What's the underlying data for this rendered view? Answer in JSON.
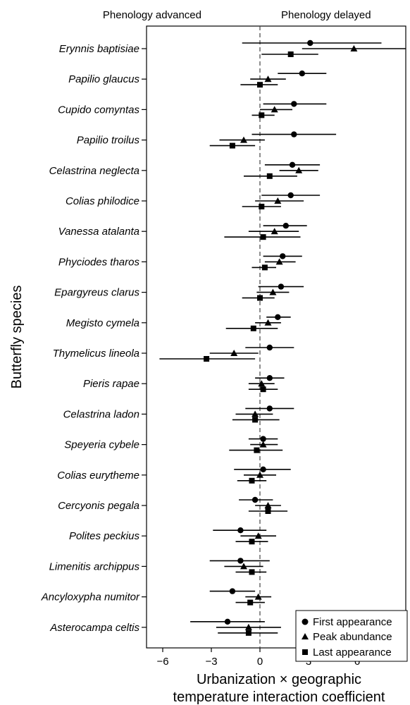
{
  "chart_data": {
    "type": "scatter",
    "subtype": "forest-plot",
    "title": "",
    "top_labels": {
      "left": "Phenology advanced",
      "right": "Phenology delayed"
    },
    "xlabel_lines": [
      "Urbanization × geographic",
      "temperature interaction coefficient"
    ],
    "ylabel": "Butterfly species",
    "xlim": [
      -7,
      9
    ],
    "xticks": [
      -6,
      -3,
      0,
      3,
      6
    ],
    "reference_line_x": 0,
    "legend_position": "bottom-right",
    "legend": [
      {
        "name": "First appearance",
        "marker": "circle"
      },
      {
        "name": "Peak abundance",
        "marker": "triangle"
      },
      {
        "name": "Last appearance",
        "marker": "square"
      }
    ],
    "species": [
      {
        "name": "Erynnis baptisiae",
        "first": [
          3.1,
          -1.1,
          7.5
        ],
        "peak": [
          5.8,
          2.6,
          9.0
        ],
        "last": [
          1.9,
          0.1,
          3.6
        ]
      },
      {
        "name": "Papilio glaucus",
        "first": [
          2.6,
          1.1,
          4.1
        ],
        "peak": [
          0.5,
          -0.6,
          1.6
        ],
        "last": [
          0.0,
          -1.2,
          1.1
        ]
      },
      {
        "name": "Cupido comyntas",
        "first": [
          2.1,
          0.2,
          4.1
        ],
        "peak": [
          0.9,
          0.0,
          2.0
        ],
        "last": [
          0.1,
          -0.5,
          0.9
        ]
      },
      {
        "name": "Papilio troilus",
        "first": [
          2.1,
          -0.5,
          4.7
        ],
        "peak": [
          -1.0,
          -2.5,
          0.3
        ],
        "last": [
          -1.7,
          -3.1,
          -0.3
        ]
      },
      {
        "name": "Celastrina neglecta",
        "first": [
          2.0,
          0.3,
          3.7
        ],
        "peak": [
          2.4,
          1.2,
          3.6
        ],
        "last": [
          0.6,
          -1.0,
          2.3
        ]
      },
      {
        "name": "Colias philodice",
        "first": [
          1.9,
          0.1,
          3.7
        ],
        "peak": [
          1.1,
          -0.3,
          2.7
        ],
        "last": [
          0.1,
          -1.1,
          1.3
        ]
      },
      {
        "name": "Vanessa atalanta",
        "first": [
          1.6,
          0.2,
          2.9
        ],
        "peak": [
          0.9,
          -0.7,
          2.4
        ],
        "last": [
          0.2,
          -2.2,
          2.5
        ]
      },
      {
        "name": "Phyciodes tharos",
        "first": [
          1.4,
          0.2,
          2.6
        ],
        "peak": [
          1.2,
          0.3,
          2.2
        ],
        "last": [
          0.3,
          -0.5,
          1.0
        ]
      },
      {
        "name": "Epargyreus clarus",
        "first": [
          1.3,
          -0.1,
          2.7
        ],
        "peak": [
          0.8,
          -0.2,
          1.8
        ],
        "last": [
          0.0,
          -1.1,
          0.9
        ]
      },
      {
        "name": "Megisto cymela",
        "first": [
          1.1,
          0.4,
          1.9
        ],
        "peak": [
          0.5,
          -0.3,
          1.3
        ],
        "last": [
          -0.4,
          -2.1,
          1.1
        ]
      },
      {
        "name": "Thymelicus lineola",
        "first": [
          0.6,
          -0.9,
          2.1
        ],
        "peak": [
          -1.6,
          -3.1,
          -0.1
        ],
        "last": [
          -3.3,
          -6.2,
          -0.3
        ]
      },
      {
        "name": "Pieris rapae",
        "first": [
          0.6,
          -0.3,
          1.5
        ],
        "peak": [
          0.1,
          -0.7,
          0.9
        ],
        "last": [
          0.2,
          -0.7,
          1.1
        ]
      },
      {
        "name": "Celastrina ladon",
        "first": [
          0.6,
          -0.9,
          2.1
        ],
        "peak": [
          -0.3,
          -1.5,
          0.8
        ],
        "last": [
          -0.3,
          -1.7,
          1.2
        ]
      },
      {
        "name": "Speyeria cybele",
        "first": [
          0.2,
          -0.7,
          1.1
        ],
        "peak": [
          0.2,
          -0.6,
          1.1
        ],
        "last": [
          -0.2,
          -1.9,
          1.4
        ]
      },
      {
        "name": "Colias eurytheme",
        "first": [
          0.2,
          -1.6,
          1.9
        ],
        "peak": [
          0.0,
          -1.0,
          1.0
        ],
        "last": [
          -0.5,
          -1.4,
          0.4
        ]
      },
      {
        "name": "Cercyonis pegala",
        "first": [
          -0.3,
          -1.3,
          0.8
        ],
        "peak": [
          0.5,
          -0.3,
          1.3
        ],
        "last": [
          0.5,
          -0.7,
          1.7
        ]
      },
      {
        "name": "Polites peckius",
        "first": [
          -1.2,
          -2.9,
          0.4
        ],
        "peak": [
          -0.1,
          -1.2,
          1.0
        ],
        "last": [
          -0.5,
          -1.5,
          0.5
        ]
      },
      {
        "name": "Limenitis archippus",
        "first": [
          -1.2,
          -3.1,
          0.6
        ],
        "peak": [
          -1.0,
          -2.2,
          0.2
        ],
        "last": [
          -0.5,
          -1.5,
          0.4
        ]
      },
      {
        "name": "Ancyloxypha numitor",
        "first": [
          -1.7,
          -3.1,
          -0.3
        ],
        "peak": [
          -0.1,
          -0.9,
          0.7
        ],
        "last": [
          -0.6,
          -1.5,
          0.3
        ]
      },
      {
        "name": "Asterocampa celtis",
        "first": [
          -2.0,
          -4.3,
          0.3
        ],
        "peak": [
          -0.7,
          -2.7,
          1.3
        ],
        "last": [
          -0.7,
          -2.6,
          1.1
        ]
      }
    ]
  }
}
